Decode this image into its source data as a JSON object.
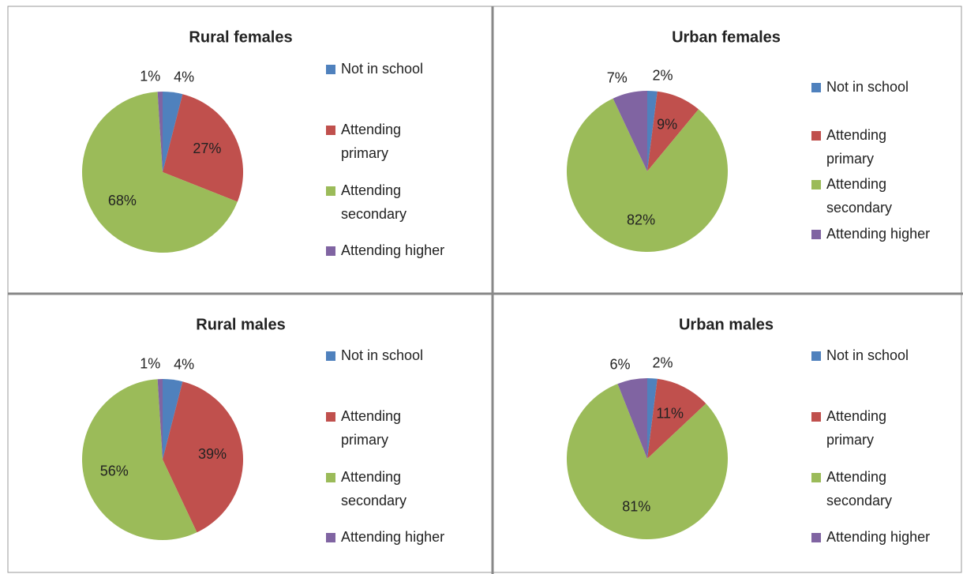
{
  "chart_data": [
    {
      "type": "pie",
      "title": "Rural females",
      "categories": [
        "Not in school",
        "Attending primary",
        "Attending secondary",
        "Attending higher"
      ],
      "values": [
        4,
        27,
        68,
        1
      ],
      "value_labels": [
        "4%",
        "27%",
        "68%",
        "1%"
      ],
      "colors": [
        "#4f81bd",
        "#c0504d",
        "#9bbb59",
        "#8064a2"
      ],
      "legend": "right"
    },
    {
      "type": "pie",
      "title": "Urban females",
      "categories": [
        "Not in school",
        "Attending primary",
        "Attending secondary",
        "Attending higher"
      ],
      "values": [
        2,
        9,
        82,
        7
      ],
      "value_labels": [
        "2%",
        "9%",
        "82%",
        "7%"
      ],
      "colors": [
        "#4f81bd",
        "#c0504d",
        "#9bbb59",
        "#8064a2"
      ],
      "legend": "right"
    },
    {
      "type": "pie",
      "title": "Rural males",
      "categories": [
        "Not in school",
        "Attending primary",
        "Attending secondary",
        "Attending higher"
      ],
      "values": [
        4,
        39,
        56,
        1
      ],
      "value_labels": [
        "4%",
        "39%",
        "56%",
        "1%"
      ],
      "colors": [
        "#4f81bd",
        "#c0504d",
        "#9bbb59",
        "#8064a2"
      ],
      "legend": "right"
    },
    {
      "type": "pie",
      "title": "Urban males",
      "categories": [
        "Not in school",
        "Attending primary",
        "Attending secondary",
        "Attending higher"
      ],
      "values": [
        2,
        11,
        81,
        6
      ],
      "value_labels": [
        "2%",
        "11%",
        "81%",
        "6%"
      ],
      "colors": [
        "#4f81bd",
        "#c0504d",
        "#9bbb59",
        "#8064a2"
      ],
      "legend": "right"
    }
  ]
}
